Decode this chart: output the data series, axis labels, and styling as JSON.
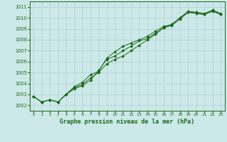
{
  "title": "Graphe pression niveau de la mer (hPa)",
  "background_color": "#cce8e8",
  "grid_color": "#b8d8d8",
  "line_color": "#1a6b1a",
  "xlim": [
    -0.5,
    23.5
  ],
  "ylim": [
    1001.5,
    1011.5
  ],
  "xtick_labels": [
    "0",
    "1",
    "2",
    "3",
    "4",
    "5",
    "6",
    "7",
    "8",
    "9",
    "10",
    "11",
    "12",
    "13",
    "14",
    "15",
    "16",
    "17",
    "18",
    "19",
    "20",
    "21",
    "22",
    "23"
  ],
  "yticks": [
    1002,
    1003,
    1004,
    1005,
    1006,
    1007,
    1008,
    1009,
    1010,
    1011
  ],
  "series": [
    [
      1002.8,
      1002.3,
      1002.5,
      1002.3,
      1003.0,
      1003.7,
      1004.1,
      1004.8,
      1005.1,
      1006.3,
      1006.9,
      1007.4,
      1007.7,
      1008.0,
      1008.3,
      1008.8,
      1009.2,
      1009.4,
      1010.0,
      1010.6,
      1010.5,
      1010.4,
      1010.7,
      1010.4
    ],
    [
      1002.8,
      1002.3,
      1002.5,
      1002.3,
      1003.0,
      1003.5,
      1003.8,
      1004.3,
      1005.2,
      1006.2,
      1006.5,
      1007.0,
      1007.4,
      1007.9,
      1008.1,
      1008.6,
      1009.1,
      1009.3,
      1009.9,
      1010.5,
      1010.5,
      1010.3,
      1010.6,
      1010.3
    ],
    [
      1002.8,
      1002.3,
      1002.5,
      1002.3,
      1003.0,
      1003.6,
      1003.9,
      1004.5,
      1005.0,
      1005.8,
      1006.2,
      1006.5,
      1007.0,
      1007.5,
      1008.0,
      1008.5,
      1009.1,
      1009.4,
      1010.0,
      1010.5,
      1010.4,
      1010.3,
      1010.7,
      1010.3
    ]
  ]
}
